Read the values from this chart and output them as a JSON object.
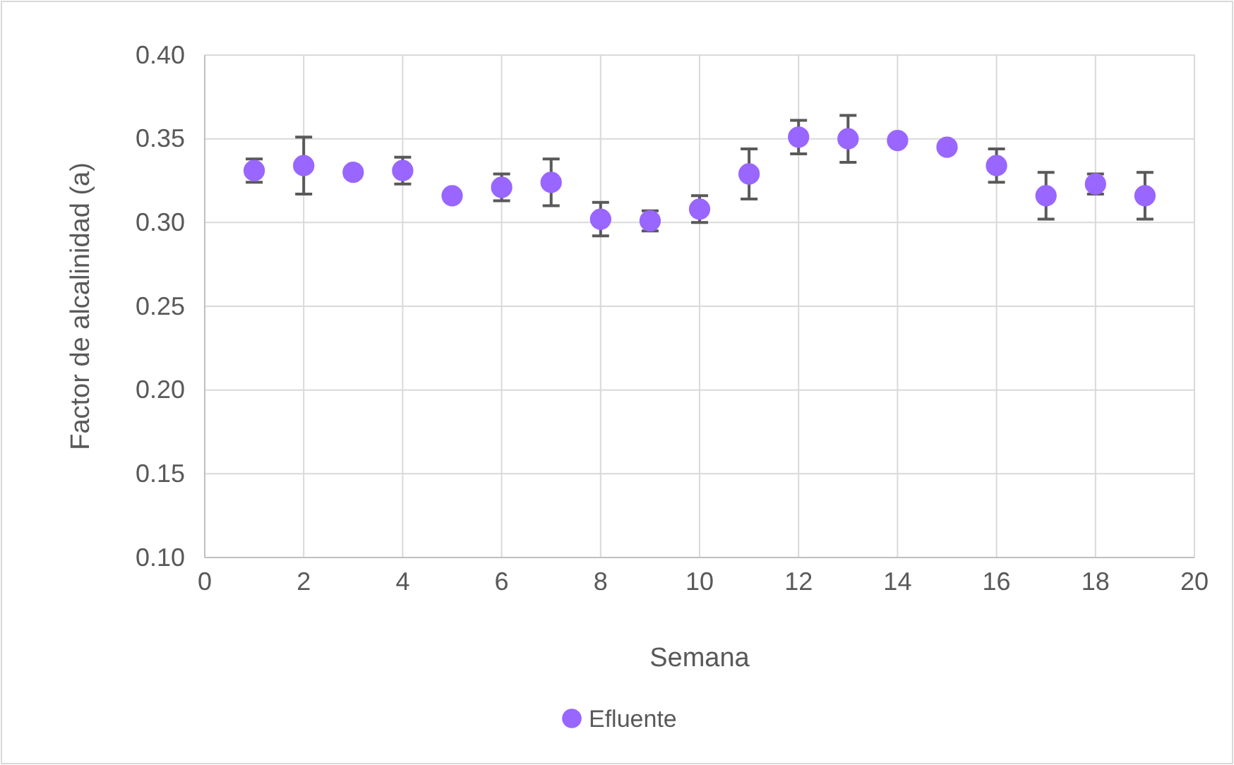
{
  "chart_data": {
    "type": "scatter",
    "xlabel": "Semana",
    "ylabel": "Factor de alcalinidad (a)",
    "x": [
      1,
      2,
      3,
      4,
      5,
      6,
      7,
      8,
      9,
      10,
      11,
      12,
      13,
      14,
      15,
      16,
      17,
      18,
      19
    ],
    "series": [
      {
        "name": "Efluente",
        "color": "#9966ff",
        "values": [
          0.331,
          0.334,
          0.33,
          0.331,
          0.316,
          0.321,
          0.324,
          0.302,
          0.301,
          0.308,
          0.329,
          0.351,
          0.35,
          0.349,
          0.345,
          0.334,
          0.316,
          0.323,
          0.316
        ],
        "errors": [
          0.007,
          0.017,
          null,
          0.008,
          null,
          0.008,
          0.014,
          0.01,
          0.006,
          0.008,
          0.015,
          0.01,
          0.014,
          null,
          null,
          0.01,
          0.014,
          0.006,
          0.014
        ]
      }
    ],
    "xlim": [
      0,
      20
    ],
    "xticks": [
      0,
      2,
      4,
      6,
      8,
      10,
      12,
      14,
      16,
      18,
      20
    ],
    "ylim": [
      0.1,
      0.4
    ],
    "yticks": [
      {
        "value": 0.1,
        "label": "0.10"
      },
      {
        "value": 0.15,
        "label": "0.15"
      },
      {
        "value": 0.2,
        "label": "0.20"
      },
      {
        "value": 0.25,
        "label": "0.25"
      },
      {
        "value": 0.3,
        "label": "0.30"
      },
      {
        "value": 0.35,
        "label": "0.35"
      },
      {
        "value": 0.4,
        "label": "0.40"
      }
    ],
    "grid": true,
    "legend": "bottom",
    "marker": "circle"
  }
}
